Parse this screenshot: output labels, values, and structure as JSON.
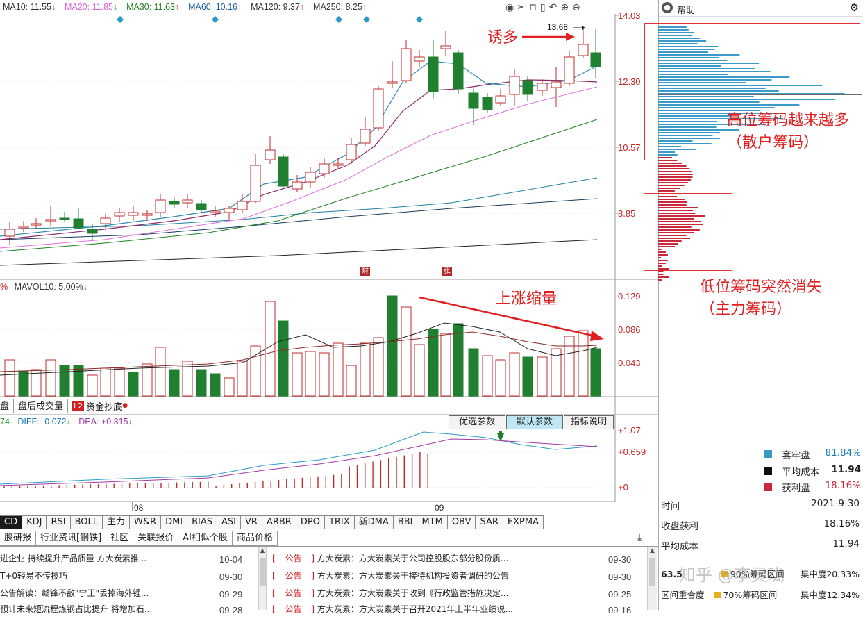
{
  "ma_bar": [
    {
      "text": "MA10: 11.55",
      "arrow": "↓",
      "color": "#333333"
    },
    {
      "text": "MA20: 11.85",
      "arrow": "↓",
      "color": "#e060e0"
    },
    {
      "text": "MA30: 11.63",
      "arrow": "↑",
      "color": "#208020"
    },
    {
      "text": "MA60: 10.16",
      "arrow": "↑",
      "color": "#2060a0"
    },
    {
      "text": "MA120: 9.37",
      "arrow": "↑",
      "color": "#333333"
    },
    {
      "text": "MA250: 8.25",
      "arrow": "↑",
      "color": "#333333"
    }
  ],
  "price_axis": [
    "14.03",
    "12.30",
    "10.57",
    "8.85"
  ],
  "high_label": "13.68",
  "markers": [
    "财",
    "张"
  ],
  "vol_header": {
    "left": "%",
    "mavol": "MAVOL10: 5.00%",
    "arrow": "↓"
  },
  "vol_axis": [
    "0.129",
    "0.086",
    "0.043"
  ],
  "macd_header": {
    "left": "74",
    "diff": "DIFF: -0.072",
    "diff_arrow": "↓",
    "dea": "DEA: +0.315",
    "dea_arrow": "↓"
  },
  "macd_axis": [
    "+1.07",
    "+0.659",
    "+0"
  ],
  "date_axis": [
    "08",
    "09"
  ],
  "sub_tabs": [
    "盘",
    "盘后成交量",
    "资金抄底"
  ],
  "l2_badge": "L2",
  "param_buttons": [
    "优选参数",
    "默认参数",
    "指标说明"
  ],
  "indicator_tabs": [
    "CD",
    "KDJ",
    "RSI",
    "BOLL",
    "主力",
    "W&R",
    "DMI",
    "BIAS",
    "ASI",
    "VR",
    "ARBR",
    "DPO",
    "TRIX",
    "新DMA",
    "BBI",
    "MTM",
    "OBV",
    "SAR",
    "EXPMA"
  ],
  "news_tabs": [
    "股研报",
    "行业资讯[钢铁]",
    "社区",
    "关联报价",
    "AI相似个股",
    "商品价格"
  ],
  "news_left": [
    {
      "title": "进企业 持续提升产品质量 方大炭素推...",
      "date": "10-04"
    },
    {
      "title": "T+0轻易不传技巧",
      "date": "09-30"
    },
    {
      "title": "公告解读：赣锋不敌\"宁王\"丢掉海外锂...",
      "date": "09-29"
    },
    {
      "title": "预计未来短流程炼钢占比提升 将增加石...",
      "date": "09-28"
    }
  ],
  "news_right": [
    {
      "tag": "公告",
      "title": "方大炭素：方大炭素关于公司控股股东部分股份质...",
      "date": "09-30"
    },
    {
      "tag": "公告",
      "title": "方大炭素：方大炭素关于接待机构投资者调研的公告",
      "date": "09-30"
    },
    {
      "tag": "公告",
      "title": "方大炭素：方大炭素关于收到《行政监管措施决定...",
      "date": "09-25"
    },
    {
      "tag": "公告",
      "title": "方大炭素：方大炭素关于召开2021年上半年业绩说...",
      "date": "09-16"
    }
  ],
  "right_panel": {
    "title": "帮助",
    "legend": [
      {
        "label": "套牢盘",
        "value": "81.84%",
        "color": "#3a9ac8",
        "value_color": "#1a7ab8"
      },
      {
        "label": "平均成本",
        "value": "11.94",
        "color": "#111111",
        "value_color": "#111111"
      },
      {
        "label": "获利盘",
        "value": "18.16%",
        "color": "#c8283a",
        "value_color": "#c8283a"
      }
    ],
    "info": [
      {
        "label": "时间",
        "value": "2021-9-30"
      },
      {
        "label": "收盘获利",
        "value": "18.16%"
      },
      {
        "label": "平均成本",
        "value": "11.94"
      }
    ],
    "bottom_row1": {
      "left": "63.5",
      "mid": "90%筹码区间",
      "right": "集中度20.33%"
    },
    "bottom_row2": {
      "left": "区间重合度",
      "mid": "70%筹码区间",
      "right": "集中度12.34%"
    },
    "watermark": "知乎 @李灵珑"
  },
  "annotations": {
    "lure": "诱多",
    "vol_shrink": "上涨缩量",
    "high_chips": "高位筹码越来越多（散户筹码）",
    "low_chips": "低位筹码突然消失（主力筹码）"
  }
}
